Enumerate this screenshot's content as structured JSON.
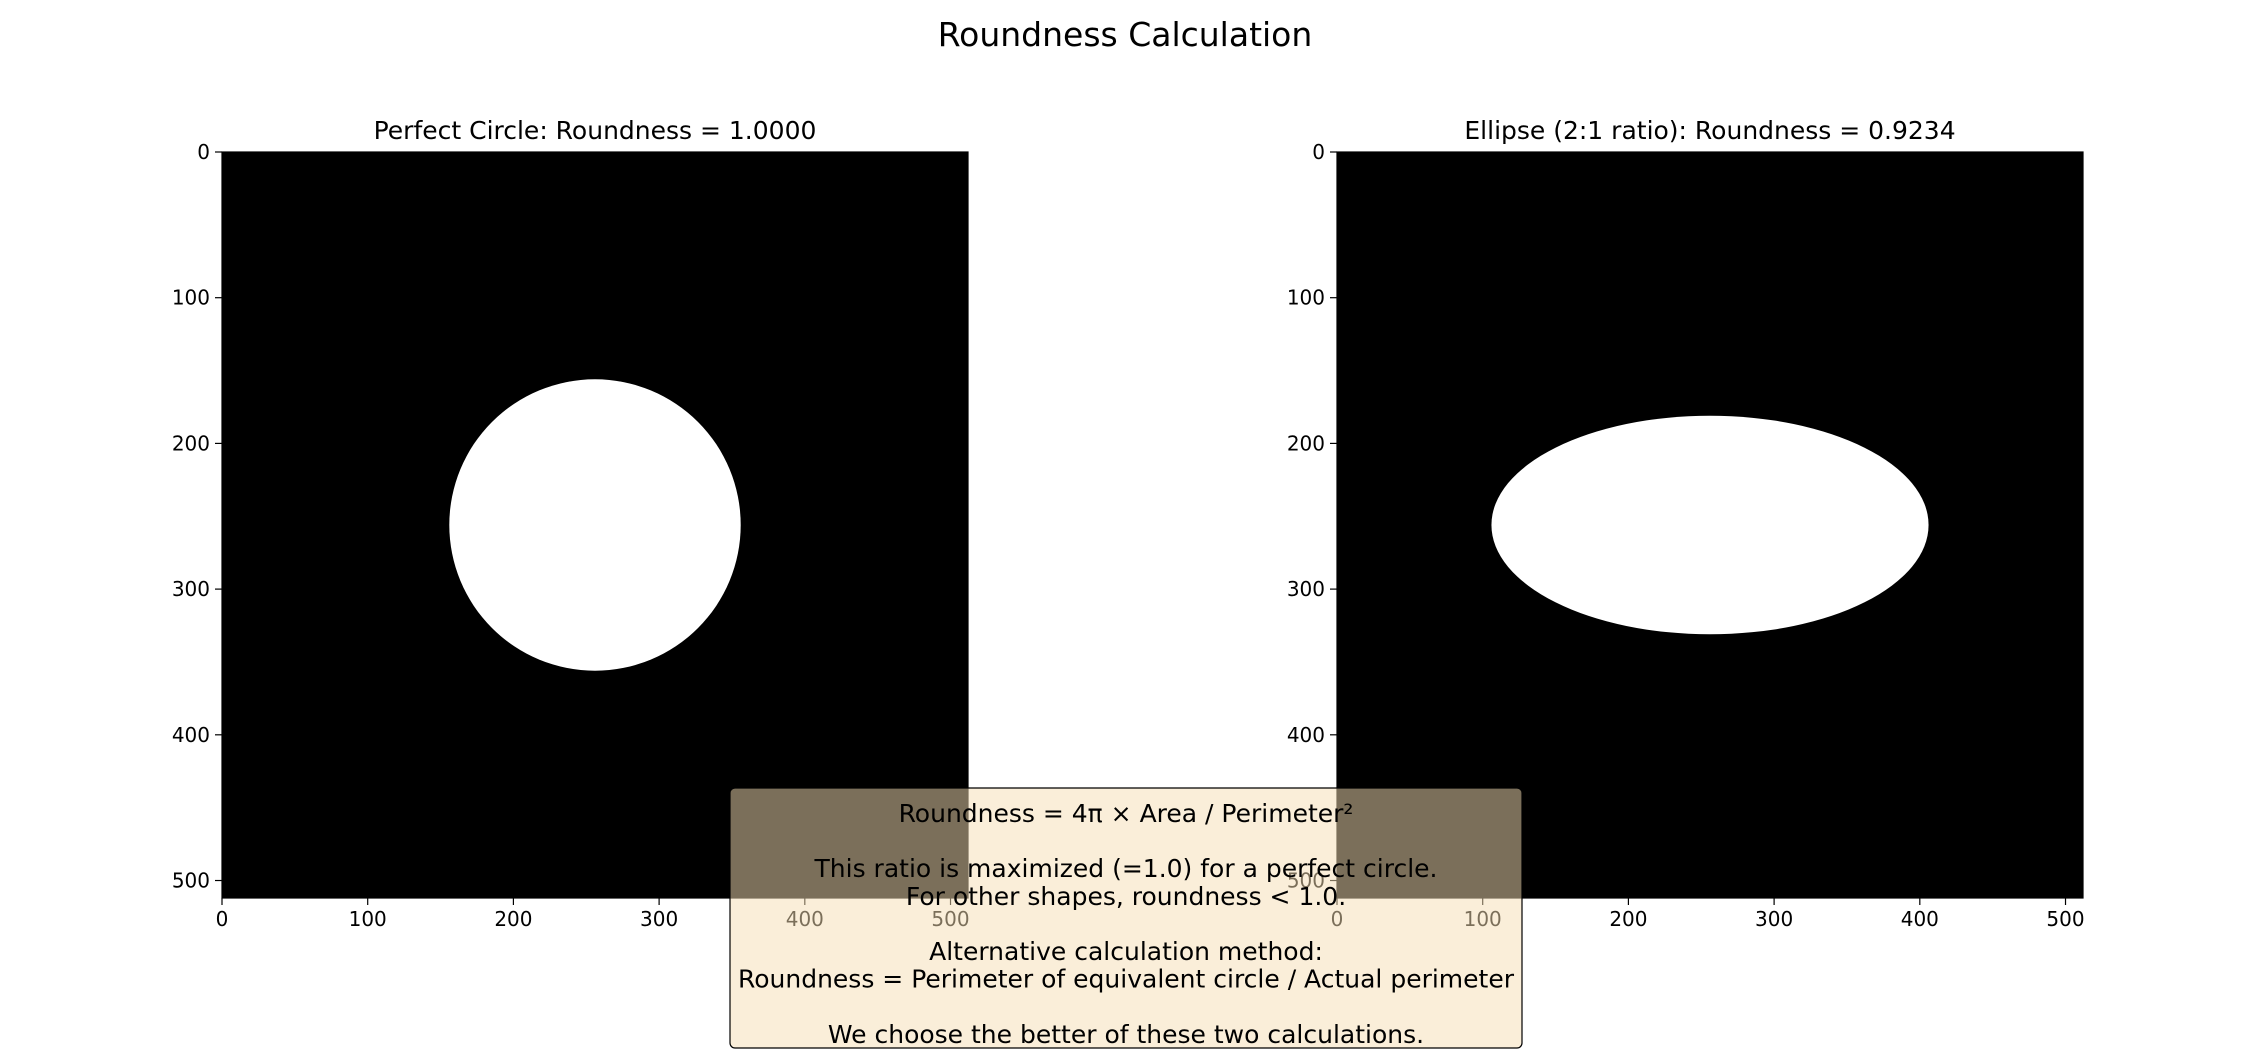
{
  "figure": {
    "title": "Roundness Calculation"
  },
  "chart_data": [
    {
      "type": "image",
      "title": "Perfect Circle: Roundness = 1.0000",
      "image_size": [
        512,
        512
      ],
      "xlim": [
        0,
        512
      ],
      "ylim": [
        512,
        0
      ],
      "xticks": [
        0,
        100,
        200,
        300,
        400,
        500
      ],
      "yticks": [
        0,
        100,
        200,
        300,
        400,
        500
      ],
      "background_color": "#000000",
      "shape_color": "#ffffff",
      "shape": {
        "kind": "circle",
        "center": [
          256,
          256
        ],
        "radius_x": 100,
        "radius_y": 100
      },
      "roundness": 1.0
    },
    {
      "type": "image",
      "title": "Ellipse (2:1 ratio): Roundness = 0.9234",
      "image_size": [
        512,
        512
      ],
      "xlim": [
        0,
        512
      ],
      "ylim": [
        512,
        0
      ],
      "xticks": [
        0,
        100,
        200,
        300,
        400,
        500
      ],
      "yticks": [
        0,
        100,
        200,
        300,
        400,
        500
      ],
      "background_color": "#000000",
      "shape_color": "#ffffff",
      "shape": {
        "kind": "ellipse",
        "center": [
          256,
          256
        ],
        "radius_x": 150,
        "radius_y": 75
      },
      "roundness": 0.9234
    }
  ],
  "note": {
    "lines": [
      "Roundness = 4π × Area / Perimeter²",
      "",
      "This ratio is maximized (=1.0) for a perfect circle.",
      "For other shapes, roundness < 1.0.",
      "",
      "Alternative calculation method:",
      "Roundness = Perimeter of equivalent circle / Actual perimeter",
      "",
      "We choose the better of these two calculations."
    ],
    "background_color": "#f5deb3",
    "opacity": 0.5
  }
}
